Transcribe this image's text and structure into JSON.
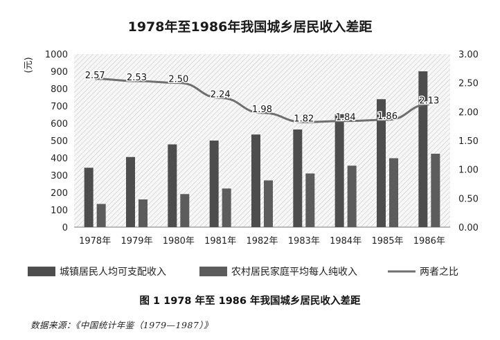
{
  "chart_data": {
    "type": "bar",
    "title": "1978年至1986年我国城乡居民收入差距",
    "ylabel": "(元)",
    "ylim": [
      0,
      1000
    ],
    "y_ticks": [
      "0",
      "100",
      "200",
      "300",
      "400",
      "500",
      "600",
      "700",
      "800",
      "900",
      "1000"
    ],
    "y2lim": [
      0,
      3
    ],
    "y2_ticks": [
      "0.00",
      "0.50",
      "1.00",
      "1.50",
      "2.00",
      "2.50",
      "3.00"
    ],
    "categories": [
      "1978年",
      "1979年",
      "1980年",
      "1981年",
      "1982年",
      "1983年",
      "1984年",
      "1985年",
      "1986年"
    ],
    "series": [
      {
        "name": "城镇居民人均可支配收入",
        "type": "bar",
        "axis": "left",
        "color": "#4d4d4d",
        "values": [
          343,
          405,
          478,
          500,
          535,
          564,
          652,
          739,
          900
        ]
      },
      {
        "name": "农村居民家庭平均每人纯收入",
        "type": "bar",
        "axis": "left",
        "color": "#5c5c5c",
        "values": [
          134,
          160,
          191,
          223,
          270,
          310,
          355,
          398,
          424
        ]
      },
      {
        "name": "两者之比",
        "type": "line",
        "axis": "right",
        "color": "#6f6f6f",
        "values": [
          2.57,
          2.53,
          2.5,
          2.24,
          1.98,
          1.82,
          1.84,
          1.86,
          2.13
        ],
        "labels": [
          "2.57",
          "2.53",
          "2.50",
          "2.24",
          "1.98",
          "1.82",
          "1.84",
          "1.86",
          "2.13"
        ]
      }
    ],
    "plot_background": "hatched",
    "grid": false,
    "legend_position": "bottom"
  },
  "figure_caption": "图 1  1978 年至 1986 年我国城乡居民收入差距",
  "source_note": "数据来源：《中国统计年鉴（1979—1987）》"
}
